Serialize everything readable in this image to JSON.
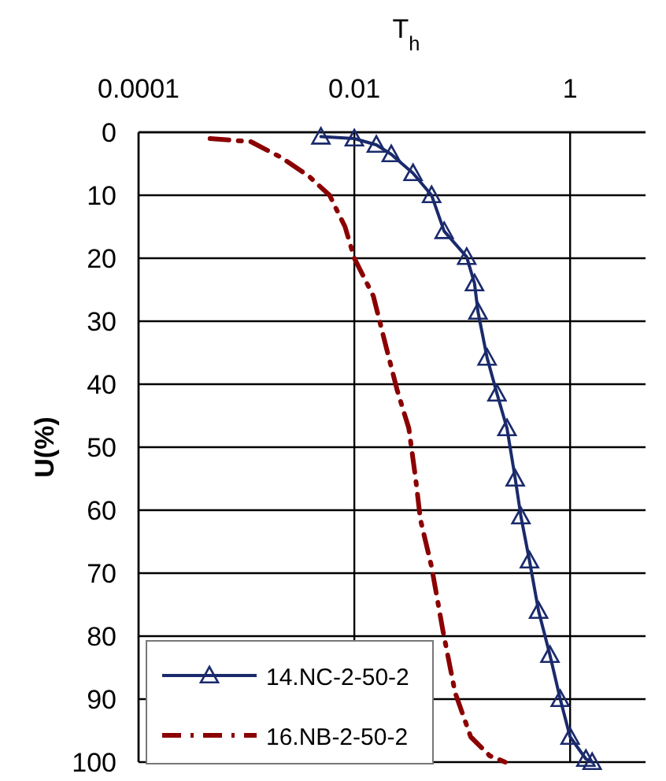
{
  "chart_data": {
    "type": "line",
    "title": "T$_{h}$",
    "ylabel": "U(%)",
    "log": "x",
    "xlim": [
      0.0001,
      5
    ],
    "xticks": [
      0.0001,
      0.01,
      1
    ],
    "ylim": [
      100,
      0
    ],
    "yticks": [
      0,
      10,
      20,
      30,
      40,
      50,
      60,
      70,
      80,
      90,
      100
    ],
    "grid": true,
    "legend": "bottom left",
    "series": [
      {
        "name": "14.NC-2-50-2",
        "color": "#1a2a6c",
        "marker": "triangle",
        "line_style": "solid",
        "x": [
          0.0049,
          0.01,
          0.016,
          0.022,
          0.035,
          0.052,
          0.068,
          0.11,
          0.13,
          0.14,
          0.17,
          0.21,
          0.26,
          0.31,
          0.35,
          0.42,
          0.51,
          0.65,
          0.81,
          1.0,
          1.4,
          1.6
        ],
        "values": [
          0.7,
          1,
          2,
          3.5,
          6.5,
          10,
          15.7,
          19.8,
          24,
          28.5,
          35.8,
          41.5,
          47,
          55,
          61,
          68,
          76,
          83,
          90,
          96,
          99.5,
          100
        ]
      },
      {
        "name": "16.NB-2-50-2",
        "color": "#8b0000",
        "marker": "none",
        "line_style": "dashed",
        "x": [
          0.00046,
          0.0011,
          0.0021,
          0.0038,
          0.0059,
          0.0065,
          0.0082,
          0.01,
          0.015,
          0.019,
          0.025,
          0.032,
          0.037,
          0.041,
          0.052,
          0.066,
          0.086,
          0.12,
          0.18,
          0.25
        ],
        "values": [
          1,
          1.5,
          4,
          7,
          10,
          11.5,
          15,
          20,
          26,
          33,
          41,
          47,
          55,
          61.5,
          69,
          79,
          89,
          96,
          99,
          100
        ]
      }
    ]
  }
}
